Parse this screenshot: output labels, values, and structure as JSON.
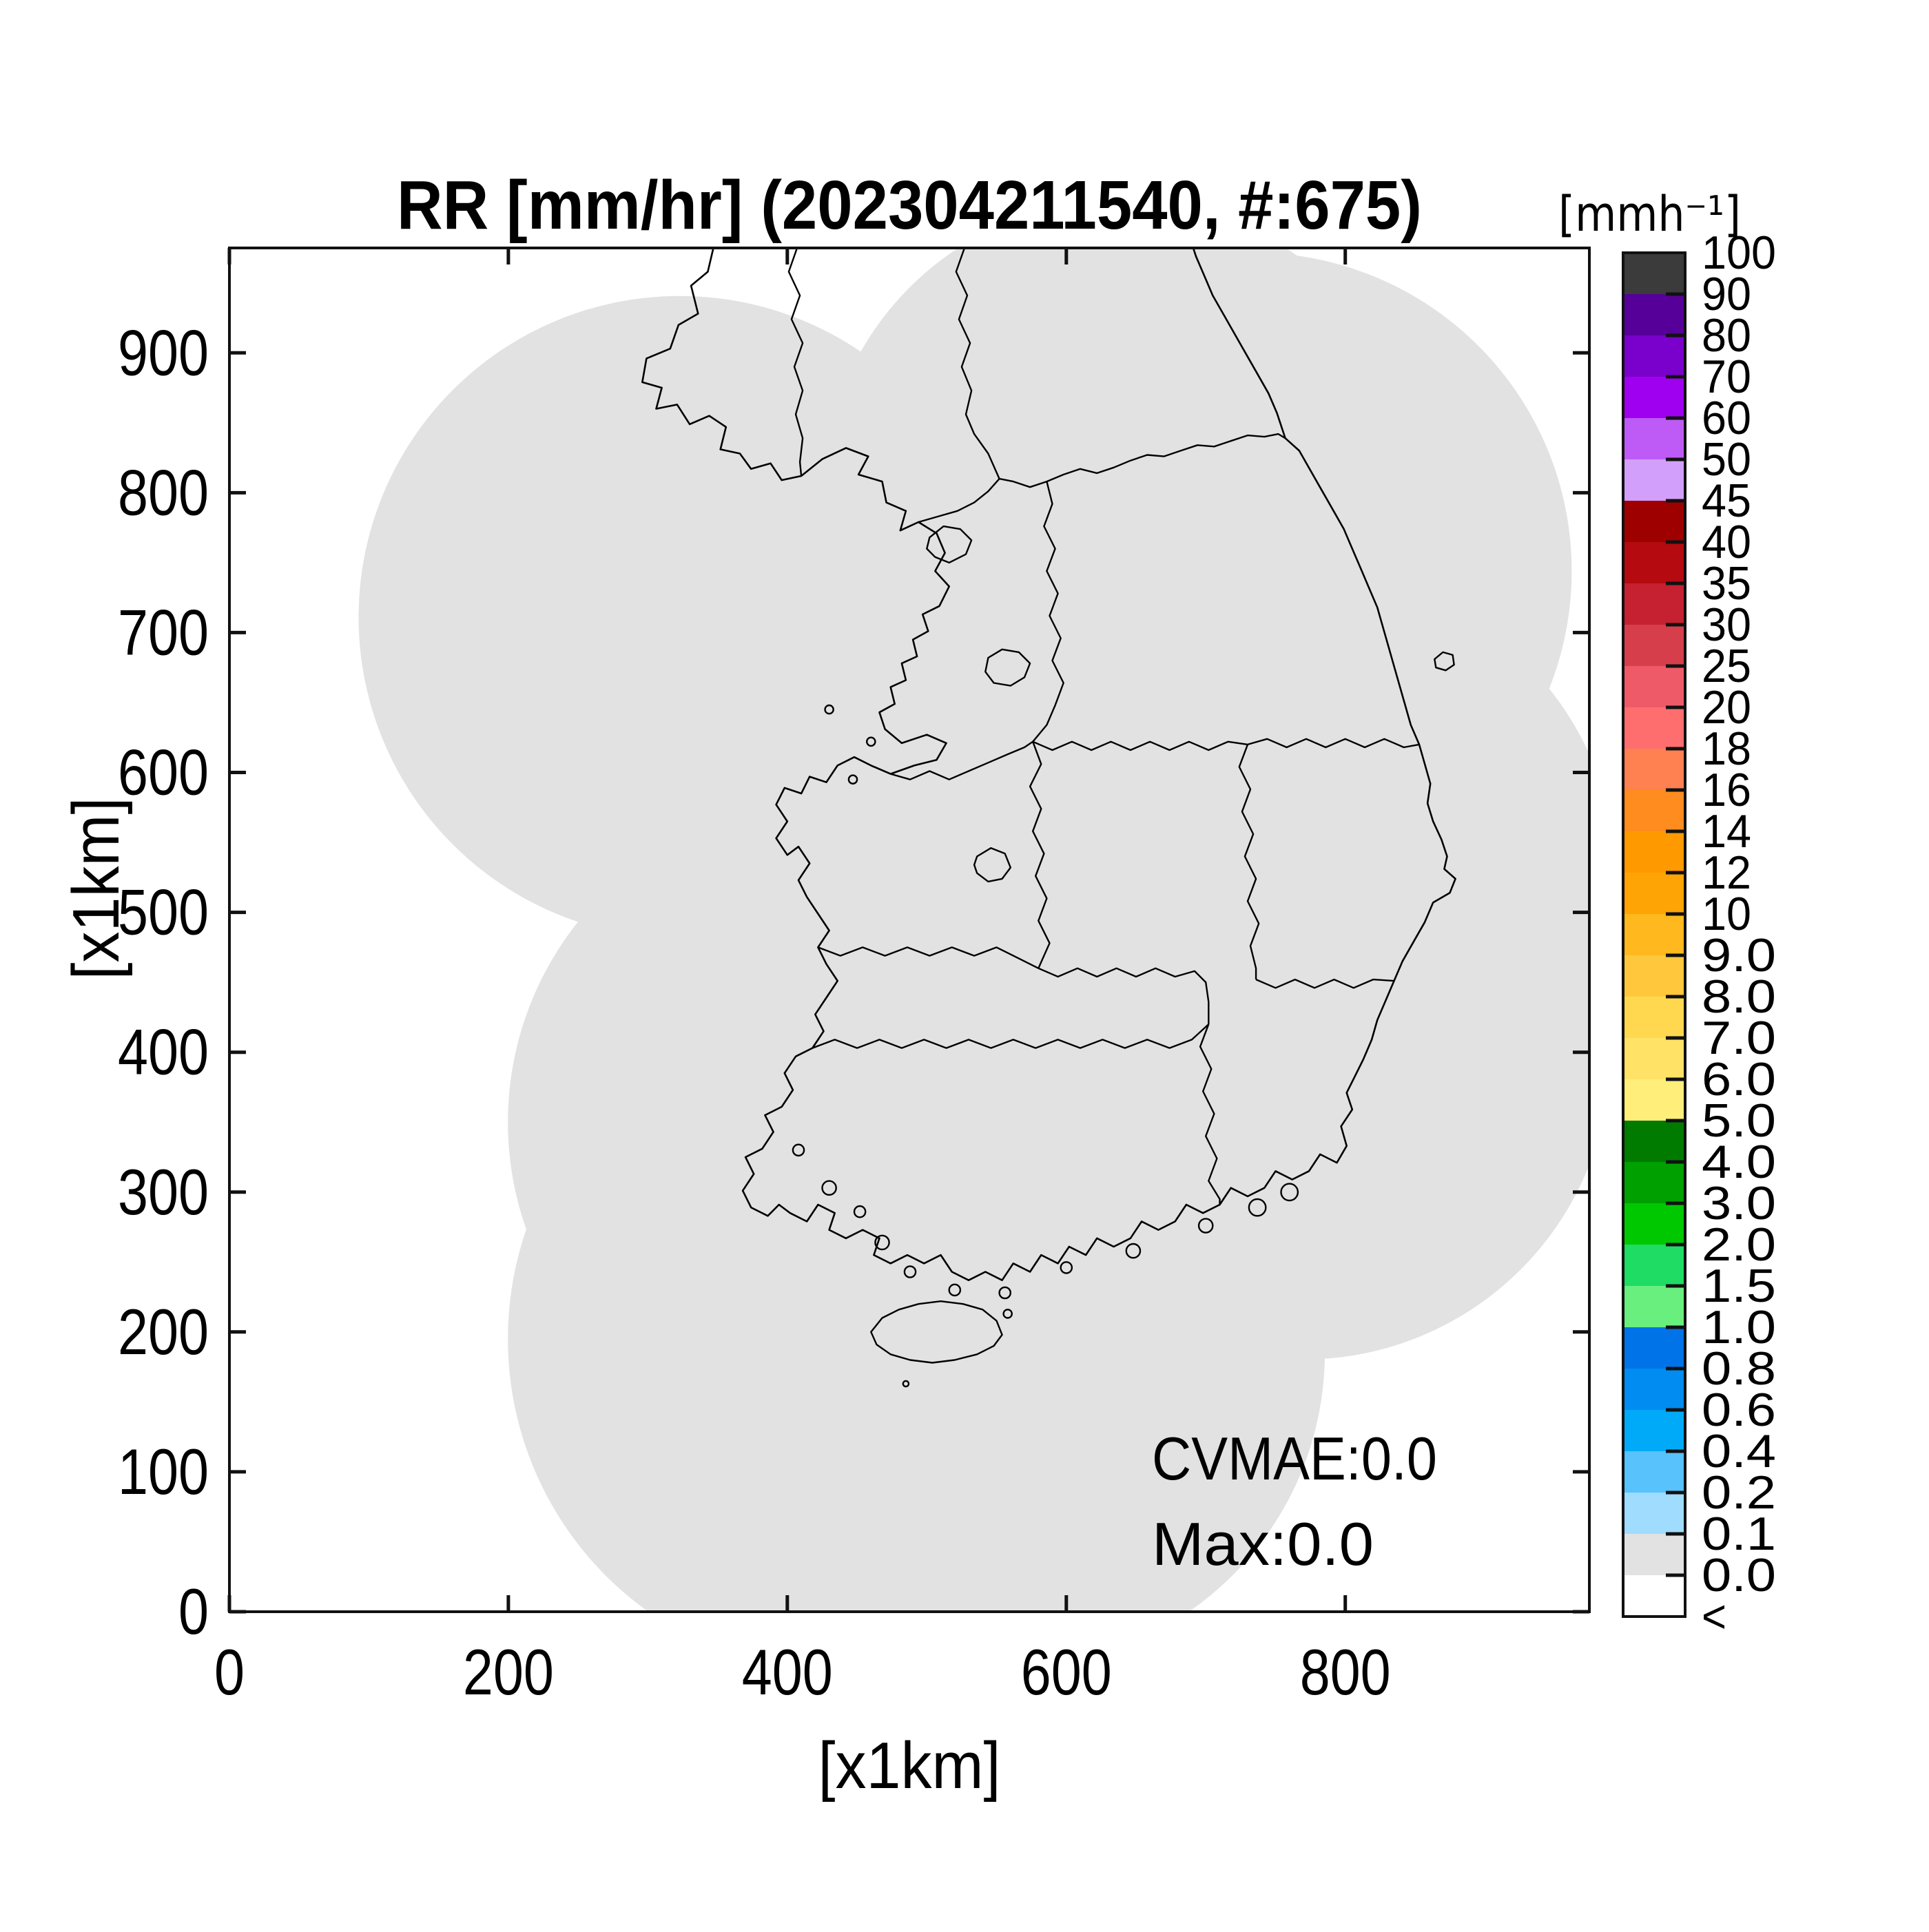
{
  "title": "RR [mm/hr] (202304211540, #:675)",
  "axes": {
    "x_label": "[x1km]",
    "y_label": "[x1km]",
    "x_ticks": [
      "0",
      "200",
      "400",
      "600",
      "800"
    ],
    "y_ticks": [
      "0",
      "100",
      "200",
      "300",
      "400",
      "500",
      "600",
      "700",
      "800",
      "900"
    ],
    "x_range": [
      0,
      975
    ],
    "y_range": [
      0,
      975
    ]
  },
  "annotations": {
    "cvmae": "CVMAE:0.0",
    "max": "Max:0.0"
  },
  "colorbar": {
    "unit_label": "[mmh⁻¹]",
    "labels": [
      "100",
      "90",
      "80",
      "70",
      "60",
      "50",
      "45",
      "40",
      "35",
      "30",
      "25",
      "20",
      "18",
      "16",
      "14",
      "12",
      "10",
      "9.0",
      "8.0",
      "7.0",
      "6.0",
      "5.0",
      "4.0",
      "3.0",
      "2.0",
      "1.5",
      "1.0",
      "0.8",
      "0.6",
      "0.4",
      "0.2",
      "0.1",
      "0.0",
      "<"
    ],
    "segment_colors": [
      "#3B3B3B",
      "#560099",
      "#7A00CC",
      "#A000F0",
      "#BE5AF5",
      "#D2A0FA",
      "#9E0000",
      "#B40A10",
      "#C52130",
      "#D63E4C",
      "#EF5A68",
      "#FF6E6E",
      "#FF8050",
      "#FF8C1E",
      "#FF9900",
      "#FFA405",
      "#FFB81E",
      "#FFC83C",
      "#FFD84F",
      "#FFE266",
      "#FFEE7A",
      "#007B00",
      "#00A000",
      "#00C800",
      "#1EDC64",
      "#69EF7D",
      "#0073E8",
      "#008CF0",
      "#00AAF8",
      "#57C2FC",
      "#9FDCFE",
      "#E2E2E2",
      "#FFFFFF"
    ]
  },
  "map": {
    "land_fill": "#E2E2E2",
    "outline_color": "#000000",
    "frame_color": "#111111"
  },
  "chart_data": {
    "type": "heatmap",
    "title": "RR [mm/hr] (202304211540, #:675)",
    "xlabel": "[x1km]",
    "ylabel": "[x1km]",
    "xlim": [
      0,
      975
    ],
    "ylim": [
      0,
      975
    ],
    "x_tick_values": [
      0,
      200,
      400,
      600,
      800
    ],
    "y_tick_values": [
      0,
      100,
      200,
      300,
      400,
      500,
      600,
      700,
      800,
      900
    ],
    "colorbar_unit": "[mmh⁻¹]",
    "levels": [
      0.0,
      0.1,
      0.2,
      0.4,
      0.6,
      0.8,
      1.0,
      1.5,
      2.0,
      3.0,
      4.0,
      5.0,
      6.0,
      7.0,
      8.0,
      9.0,
      10,
      12,
      14,
      16,
      18,
      20,
      25,
      30,
      35,
      40,
      45,
      50,
      60,
      70,
      80,
      90,
      100
    ],
    "level_colors_low_to_high": [
      "#FFFFFF",
      "#E2E2E2",
      "#9FDCFE",
      "#57C2FC",
      "#00AAF8",
      "#008CF0",
      "#0073E8",
      "#69EF7D",
      "#1EDC64",
      "#00C800",
      "#00A000",
      "#007B00",
      "#FFEE7A",
      "#FFE266",
      "#FFD84F",
      "#FFC83C",
      "#FFB81E",
      "#FFA405",
      "#FF9900",
      "#FF8C1E",
      "#FF8050",
      "#FF6E6E",
      "#EF5A68",
      "#D63E4C",
      "#C52130",
      "#B40A10",
      "#9E0000",
      "#D2A0FA",
      "#BE5AF5",
      "#A000F0",
      "#7A00CC",
      "#560099",
      "#3B3B3B"
    ],
    "values_summary": "Rainfall rate is 0.0 mm/hr everywhere inside the radar coverage area (gray region, 0.0-0.1 class); no precipitation echoes present.",
    "stats": {
      "CVMAE": 0.0,
      "Max": 0.0,
      "sample_count": 675,
      "timestamp": "202304211540"
    },
    "legend_position": "right colorbar",
    "grid": false
  }
}
